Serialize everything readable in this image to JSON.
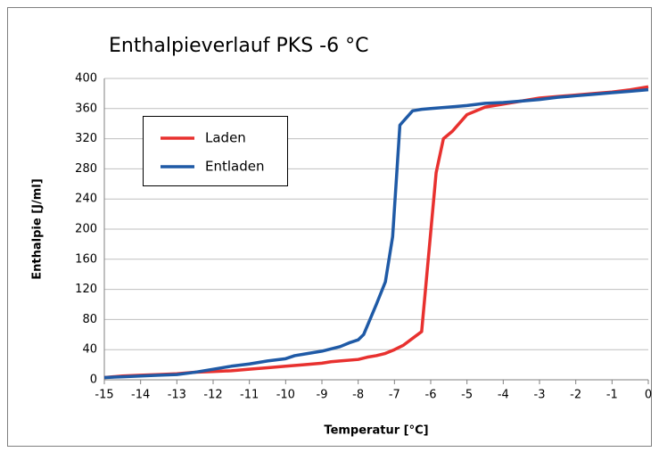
{
  "chart_data": {
    "type": "line",
    "title": "Enthalpieverlauf PKS -6 °C",
    "x_label": "Temperatur [°C]",
    "y_label": "Enthalpie [J/ml]",
    "xlim": [
      -15,
      0
    ],
    "xticks": [
      -15,
      -14,
      -13,
      -12,
      -11,
      -10,
      -9,
      -8,
      -7,
      -6,
      -5,
      -4,
      -3,
      -2,
      -1,
      0
    ],
    "ylim": [
      0,
      400
    ],
    "yticks": [
      0,
      40,
      80,
      120,
      160,
      200,
      240,
      280,
      320,
      360,
      400
    ],
    "grid": true,
    "legend": "upper left",
    "series": [
      {
        "name": "Laden",
        "color": "#e8312f",
        "x": [
          -15,
          -14.5,
          -14,
          -13.5,
          -13,
          -12.5,
          -12,
          -11.5,
          -11,
          -10.5,
          -10,
          -9.5,
          -9,
          -8.75,
          -8.5,
          -8,
          -7.75,
          -7.5,
          -7.25,
          -7,
          -6.75,
          -6.25,
          -5.85,
          -5.65,
          -5.4,
          -5,
          -4.5,
          -4,
          -3.5,
          -3,
          -2.5,
          -2,
          -1.5,
          -1,
          -0.5,
          0
        ],
        "values": [
          3,
          5,
          6,
          7,
          8,
          10,
          11,
          12,
          14,
          16,
          18,
          20,
          22,
          24,
          25,
          27,
          30,
          32,
          35,
          40,
          46,
          64,
          275,
          320,
          330,
          352,
          362,
          366,
          370,
          374,
          376,
          378,
          380,
          382,
          385,
          389
        ]
      },
      {
        "name": "Entladen",
        "color": "#1f5aa6",
        "x": [
          -15,
          -14.5,
          -14,
          -13.5,
          -13,
          -12.5,
          -12,
          -11.5,
          -11,
          -10.5,
          -10,
          -9.75,
          -9.5,
          -9,
          -8.5,
          -8.25,
          -8,
          -7.85,
          -7.5,
          -7.25,
          -7.05,
          -6.85,
          -6.5,
          -6.25,
          -6,
          -5.5,
          -5,
          -4.5,
          -4,
          -3.5,
          -3,
          -2.5,
          -2,
          -1.5,
          -1,
          -0.5,
          0
        ],
        "values": [
          3,
          4,
          5,
          6,
          7,
          10,
          14,
          18,
          21,
          25,
          28,
          32,
          34,
          38,
          44,
          49,
          53,
          60,
          100,
          130,
          190,
          338,
          357,
          359,
          360,
          362,
          364,
          367,
          368,
          370,
          372,
          375,
          377,
          379,
          381,
          383,
          385
        ]
      }
    ]
  }
}
